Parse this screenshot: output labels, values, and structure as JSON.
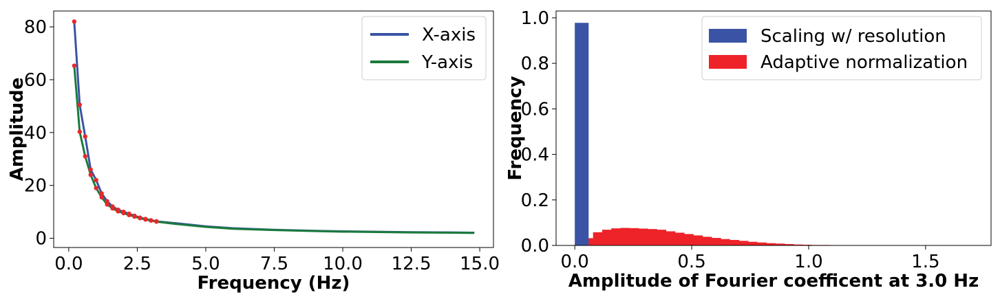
{
  "chart_data": [
    {
      "type": "line",
      "xlabel": "Frequency (Hz)",
      "ylabel": "Amplitude",
      "xlim": [
        -0.55,
        15.5
      ],
      "ylim": [
        -3.5,
        86
      ],
      "xticks": [
        0.0,
        2.5,
        5.0,
        7.5,
        10.0,
        12.5,
        15.0
      ],
      "xtick_labels": [
        "0.0",
        "2.5",
        "5.0",
        "7.5",
        "10.0",
        "12.5",
        "15.0"
      ],
      "yticks": [
        0,
        20,
        40,
        60,
        80
      ],
      "ytick_labels": [
        "0",
        "20",
        "40",
        "60",
        "80"
      ],
      "legend_placement": "top-right",
      "marker_color": "#e8282b",
      "series": [
        {
          "name": "X-axis",
          "color": "#3a53a4",
          "x": [
            0.2,
            0.4,
            0.6,
            0.8,
            1.0,
            1.2,
            1.4,
            1.6,
            1.8,
            2.0,
            2.2,
            2.4,
            2.6,
            2.8,
            3.0,
            3.2,
            4.0,
            5.0,
            6.0,
            7.5,
            9.0,
            10.0,
            11.0,
            12.5,
            14.0,
            14.8
          ],
          "y": [
            82,
            50.5,
            38.5,
            26,
            22,
            17,
            14,
            12,
            10.8,
            10,
            9.3,
            8.5,
            7.8,
            7.3,
            6.8,
            6.4,
            5.6,
            4.5,
            3.8,
            3.2,
            2.8,
            2.6,
            2.5,
            2.3,
            2.2,
            2.1
          ],
          "markers_until_x": 3.2
        },
        {
          "name": "Y-axis",
          "color": "#1a7a3c",
          "x": [
            0.2,
            0.4,
            0.6,
            0.8,
            1.0,
            1.2,
            1.4,
            1.6,
            1.8,
            2.0,
            2.2,
            2.4,
            2.6,
            2.8,
            3.0,
            3.2,
            4.0,
            5.0,
            6.0,
            7.5,
            9.0,
            10.0,
            11.0,
            12.5,
            14.0,
            14.8
          ],
          "y": [
            65.3,
            40.3,
            31,
            24,
            19,
            15.5,
            12.8,
            11.3,
            10.2,
            9.5,
            8.8,
            8.2,
            7.6,
            7.1,
            6.7,
            6.3,
            5.3,
            4.3,
            3.6,
            3.1,
            2.7,
            2.5,
            2.4,
            2.2,
            2.1,
            2.0
          ],
          "markers_until_x": 3.2
        }
      ]
    },
    {
      "type": "bar",
      "subtype": "histogram",
      "xlabel": "Amplitude of Fourier coefficent at 3.0 Hz",
      "ylabel": "Frequency",
      "xlim": [
        -0.08,
        1.78
      ],
      "ylim": [
        0,
        1.03
      ],
      "xticks": [
        0.0,
        0.5,
        1.0,
        1.5
      ],
      "xtick_labels": [
        "0.0",
        "0.5",
        "1.0",
        "1.5"
      ],
      "yticks": [
        0.0,
        0.2,
        0.4,
        0.6,
        0.8,
        1.0
      ],
      "ytick_labels": [
        "0.0",
        "0.2",
        "0.4",
        "0.6",
        "0.8",
        "1.0"
      ],
      "legend_placement": "top-right",
      "series": [
        {
          "name": "Scaling w/ resolution",
          "color": "#3a53a4",
          "bin_start": 0.0,
          "bin_width": 0.058,
          "values": [
            0.978
          ]
        },
        {
          "name": "Adaptive normalization",
          "color": "#ee2229",
          "bin_start": 0.0,
          "bin_width": 0.039,
          "values": [
            0.005,
            0.032,
            0.058,
            0.069,
            0.075,
            0.077,
            0.076,
            0.074,
            0.072,
            0.069,
            0.062,
            0.056,
            0.05,
            0.044,
            0.038,
            0.033,
            0.028,
            0.024,
            0.02,
            0.016,
            0.013,
            0.01,
            0.008,
            0.006,
            0.004,
            0.003,
            0.002,
            0.002,
            0.001,
            0.001,
            0.001
          ]
        }
      ]
    }
  ]
}
